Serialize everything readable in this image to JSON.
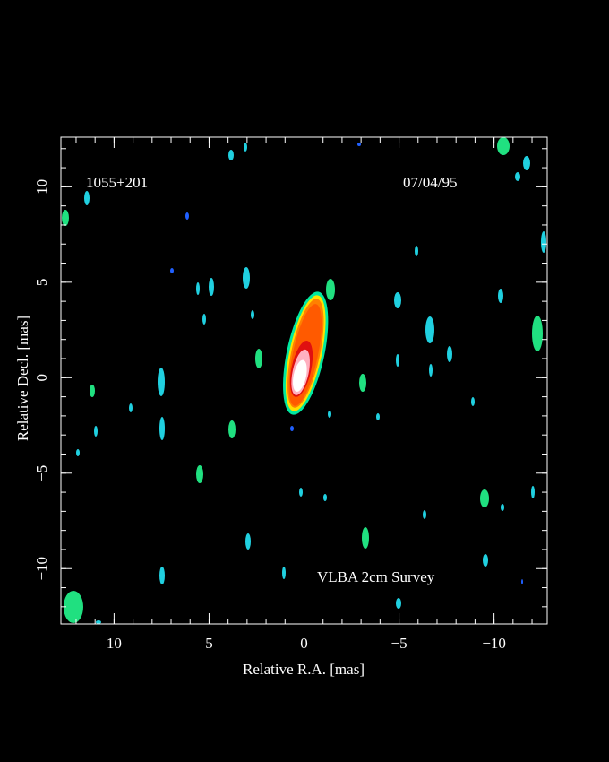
{
  "chart_data": {
    "type": "image",
    "source": "1055+201",
    "date": "07/04/95",
    "annotation": "VLBA 2cm Survey",
    "x_label": "Relative R.A. [mas]",
    "y_label": "Relative Decl. [mas]",
    "xlim": [
      12.8,
      -12.8
    ],
    "ylim": [
      -12.9,
      12.6
    ],
    "xticks": [
      10,
      5,
      0,
      {
        "value": -5,
        "label": "−5"
      },
      {
        "value": -10,
        "label": "−10"
      }
    ],
    "yticks": [
      {
        "value": -10,
        "label": "−10"
      },
      {
        "value": -5,
        "label": "−5"
      },
      0,
      5,
      10
    ]
  }
}
